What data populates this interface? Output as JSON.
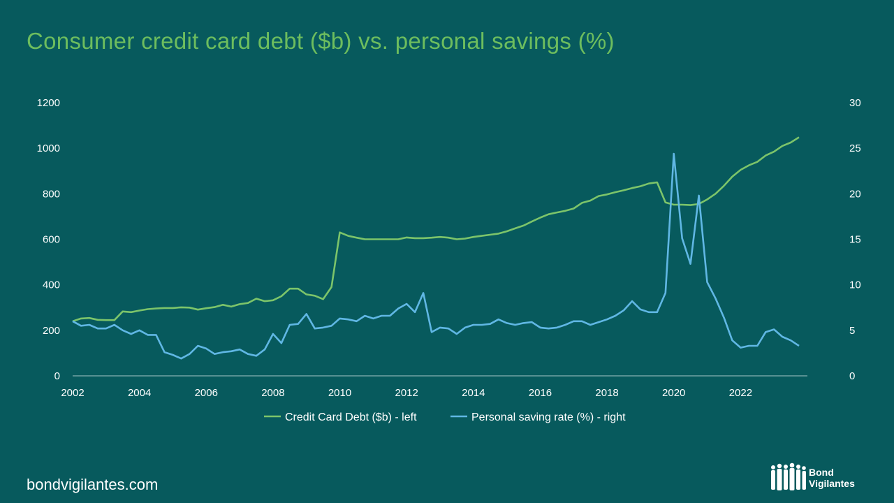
{
  "title": "Consumer credit card debt ($b) vs. personal savings (%)",
  "site": "bondvigilantes.com",
  "logo": {
    "line1": "Bond",
    "line2": "Vigilantes"
  },
  "colors": {
    "background": "#075a5d",
    "debt": "#7cc46a",
    "savings": "#60b7e4",
    "text": "#ffffff",
    "title": "#6dbd5e"
  },
  "chart_data": {
    "type": "line",
    "title": "Consumer credit card debt ($b) vs. personal savings (%)",
    "x_ticks": [
      "2002",
      "2004",
      "2006",
      "2008",
      "2010",
      "2012",
      "2014",
      "2016",
      "2018",
      "2020",
      "2022"
    ],
    "xlim": [
      2002,
      2024
    ],
    "y_left": {
      "ylim": [
        0,
        1200
      ],
      "ticks": [
        "0",
        "200",
        "400",
        "600",
        "800",
        "1000",
        "1200"
      ]
    },
    "y_right": {
      "ylim": [
        0,
        30
      ],
      "ticks": [
        "0",
        "5",
        "10",
        "15",
        "20",
        "25",
        "30"
      ]
    },
    "legend_position": "bottom",
    "grid": false,
    "series": [
      {
        "name": "Credit Card Debt ($b) - left",
        "axis": "left",
        "color": "#7cc46a",
        "x": [
          2002.0,
          2002.25,
          2002.5,
          2002.75,
          2003.0,
          2003.25,
          2003.5,
          2003.75,
          2004.0,
          2004.25,
          2004.5,
          2004.75,
          2005.0,
          2005.25,
          2005.5,
          2005.75,
          2006.0,
          2006.25,
          2006.5,
          2006.75,
          2007.0,
          2007.25,
          2007.5,
          2007.75,
          2008.0,
          2008.25,
          2008.5,
          2008.75,
          2009.0,
          2009.25,
          2009.5,
          2009.75,
          2010.0,
          2010.25,
          2010.5,
          2010.75,
          2011.0,
          2011.25,
          2011.5,
          2011.75,
          2012.0,
          2012.25,
          2012.5,
          2012.75,
          2013.0,
          2013.25,
          2013.5,
          2013.75,
          2014.0,
          2014.25,
          2014.5,
          2014.75,
          2015.0,
          2015.25,
          2015.5,
          2015.75,
          2016.0,
          2016.25,
          2016.5,
          2016.75,
          2017.0,
          2017.25,
          2017.5,
          2017.75,
          2018.0,
          2018.25,
          2018.5,
          2018.75,
          2019.0,
          2019.25,
          2019.5,
          2019.75,
          2020.0,
          2020.25,
          2020.5,
          2020.75,
          2021.0,
          2021.25,
          2021.5,
          2021.75,
          2022.0,
          2022.25,
          2022.5,
          2022.75,
          2023.0,
          2023.25,
          2023.5,
          2023.75
        ],
        "values": [
          240,
          252,
          254,
          246,
          245,
          245,
          283,
          280,
          287,
          293,
          296,
          298,
          298,
          301,
          300,
          291,
          297,
          302,
          312,
          304,
          315,
          320,
          339,
          328,
          332,
          350,
          383,
          383,
          358,
          352,
          337,
          390,
          630,
          615,
          607,
          600,
          600,
          600,
          600,
          600,
          608,
          605,
          605,
          607,
          610,
          607,
          600,
          603,
          610,
          615,
          620,
          625,
          635,
          648,
          660,
          678,
          695,
          710,
          718,
          725,
          735,
          760,
          770,
          790,
          797,
          807,
          815,
          825,
          833,
          845,
          850,
          762,
          752,
          752,
          750,
          755,
          775,
          800,
          835,
          875,
          905,
          925,
          940,
          968,
          985,
          1010,
          1025,
          1048
        ]
      },
      {
        "name": "Personal saving rate (%) - right",
        "axis": "right",
        "color": "#60b7e4",
        "x": [
          2002.0,
          2002.25,
          2002.5,
          2002.75,
          2003.0,
          2003.25,
          2003.5,
          2003.75,
          2004.0,
          2004.25,
          2004.5,
          2004.75,
          2005.0,
          2005.25,
          2005.5,
          2005.75,
          2006.0,
          2006.25,
          2006.5,
          2006.75,
          2007.0,
          2007.25,
          2007.5,
          2007.75,
          2008.0,
          2008.25,
          2008.5,
          2008.75,
          2009.0,
          2009.25,
          2009.5,
          2009.75,
          2010.0,
          2010.25,
          2010.5,
          2010.75,
          2011.0,
          2011.25,
          2011.5,
          2011.75,
          2012.0,
          2012.25,
          2012.5,
          2012.75,
          2013.0,
          2013.25,
          2013.5,
          2013.75,
          2014.0,
          2014.25,
          2014.5,
          2014.75,
          2015.0,
          2015.25,
          2015.5,
          2015.75,
          2016.0,
          2016.25,
          2016.5,
          2016.75,
          2017.0,
          2017.25,
          2017.5,
          2017.75,
          2018.0,
          2018.25,
          2018.5,
          2018.75,
          2019.0,
          2019.25,
          2019.5,
          2019.75,
          2020.0,
          2020.25,
          2020.5,
          2020.75,
          2021.0,
          2021.25,
          2021.5,
          2021.75,
          2022.0,
          2022.25,
          2022.5,
          2022.75,
          2023.0,
          2023.25,
          2023.5,
          2023.75
        ],
        "values": [
          6.0,
          5.5,
          5.6,
          5.2,
          5.2,
          5.6,
          5.0,
          4.6,
          5.0,
          4.5,
          4.5,
          2.6,
          2.3,
          1.9,
          2.4,
          3.3,
          3.0,
          2.4,
          2.6,
          2.7,
          2.9,
          2.4,
          2.2,
          2.9,
          4.6,
          3.6,
          5.6,
          5.7,
          6.8,
          5.2,
          5.3,
          5.5,
          6.3,
          6.2,
          6.0,
          6.6,
          6.3,
          6.6,
          6.6,
          7.4,
          7.9,
          7.0,
          9.1,
          4.8,
          5.3,
          5.2,
          4.6,
          5.3,
          5.6,
          5.6,
          5.7,
          6.2,
          5.8,
          5.6,
          5.8,
          5.9,
          5.3,
          5.2,
          5.3,
          5.6,
          6.0,
          6.0,
          5.6,
          5.9,
          6.2,
          6.6,
          7.2,
          8.2,
          7.3,
          7.0,
          7.0,
          9.1,
          24.4,
          15.1,
          12.3,
          19.8,
          10.3,
          8.5,
          6.4,
          3.9,
          3.1,
          3.3,
          3.3,
          4.8,
          5.1,
          4.3,
          3.9,
          3.3
        ]
      }
    ]
  }
}
